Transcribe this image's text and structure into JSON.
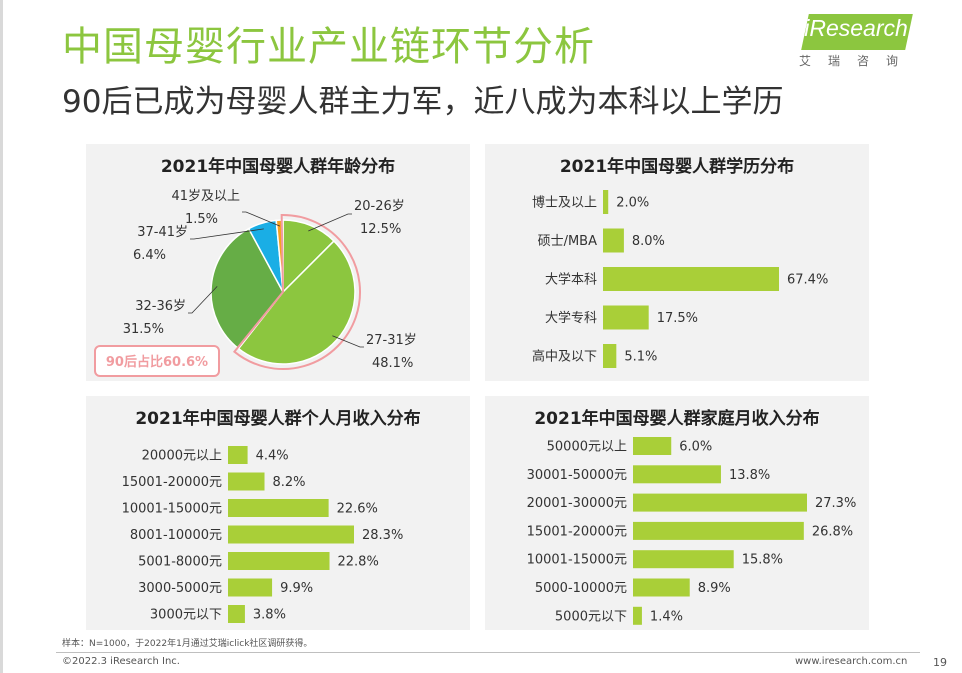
{
  "header": {
    "title": "中国母婴行业产业链环节分析",
    "subtitle": "90后已成为母婴人群主力军，近八成为本科以上学历"
  },
  "logo": {
    "text": "iResearch",
    "sub": "艾瑞咨询"
  },
  "colors": {
    "accent": "#8cc63f",
    "bar": "#a9cf38",
    "pie_dark": "#66ad46",
    "pie_blue": "#1aaee5",
    "pie_orange": "#f7a223",
    "highlight": "#f19ca0"
  },
  "chart_data": [
    {
      "id": "age",
      "type": "pie",
      "title": "2021年中国母婴人群年龄分布",
      "unit": "%",
      "slices": [
        {
          "label": "20-26岁",
          "value": 12.5
        },
        {
          "label": "27-31岁",
          "value": 48.1
        },
        {
          "label": "32-36岁",
          "value": 31.5
        },
        {
          "label": "37-41岁",
          "value": 6.4
        },
        {
          "label": "41岁及以上",
          "value": 1.5
        }
      ],
      "annotation": "90后占比60.6%"
    },
    {
      "id": "education",
      "type": "bar",
      "orientation": "horizontal",
      "title": "2021年中国母婴人群学历分布",
      "unit": "%",
      "categories": [
        "博士及以上",
        "硕士/MBA",
        "大学本科",
        "大学专科",
        "高中及以下"
      ],
      "values": [
        2.0,
        8.0,
        67.4,
        17.5,
        5.1
      ]
    },
    {
      "id": "personal_income",
      "type": "bar",
      "orientation": "horizontal",
      "title": "2021年中国母婴人群个人月收入分布",
      "unit": "%",
      "categories": [
        "20000元以上",
        "15001-20000元",
        "10001-15000元",
        "8001-10000元",
        "5001-8000元",
        "3000-5000元",
        "3000元以下"
      ],
      "values": [
        4.4,
        8.2,
        22.6,
        28.3,
        22.8,
        9.9,
        3.8
      ]
    },
    {
      "id": "family_income",
      "type": "bar",
      "orientation": "horizontal",
      "title": "2021年中国母婴人群家庭月收入分布",
      "unit": "%",
      "categories": [
        "50000元以上",
        "30001-50000元",
        "20001-30000元",
        "15001-20000元",
        "10001-15000元",
        "5000-10000元",
        "5000元以下"
      ],
      "values": [
        6.0,
        13.8,
        27.3,
        26.8,
        15.8,
        8.9,
        1.4
      ]
    }
  ],
  "footer": {
    "note": "样本：N=1000，于2022年1月通过艾瑞iclick社区调研获得。",
    "copyright": "©2022.3 iResearch Inc.",
    "website": "www.iresearch.com.cn",
    "page": "19"
  }
}
